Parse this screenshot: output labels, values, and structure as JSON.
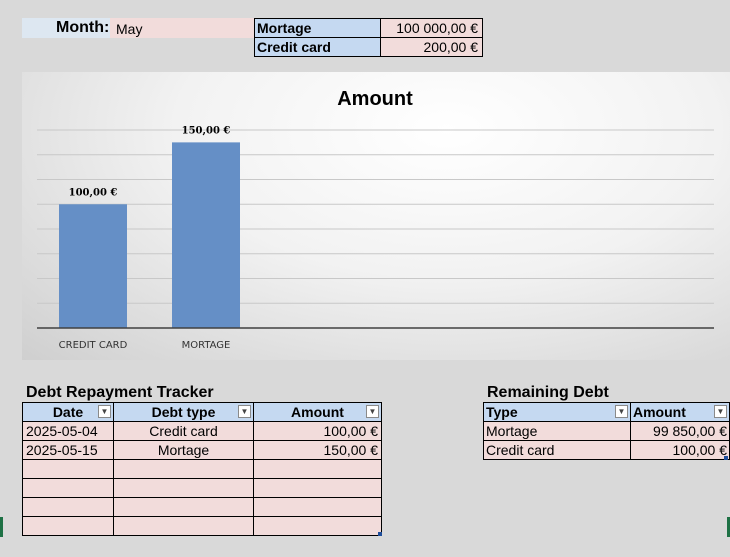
{
  "month": {
    "label": "Month:",
    "value": "May"
  },
  "balances": [
    {
      "type": "Mortage",
      "amount": "100 000,00 €"
    },
    {
      "type": "Credit card",
      "amount": "200,00 €"
    }
  ],
  "chart_data": {
    "type": "bar",
    "title": "Amount",
    "categories": [
      "CREDIT CARD",
      "MORTAGE"
    ],
    "values": [
      100,
      150
    ],
    "data_labels": [
      "100,00 €",
      "150,00 €"
    ],
    "ylim": [
      0,
      160
    ],
    "grid": true,
    "legend": "none",
    "bar_color": "#658fc6"
  },
  "tracker": {
    "title": "Debt Repayment Tracker",
    "headers": [
      "Date",
      "Debt type",
      "Amount"
    ],
    "rows": [
      [
        "2025-05-04",
        "Credit card",
        "100,00 €"
      ],
      [
        "2025-05-15",
        "Mortage",
        "150,00 €"
      ],
      [
        "",
        "",
        ""
      ],
      [
        "",
        "",
        ""
      ],
      [
        "",
        "",
        ""
      ],
      [
        "",
        "",
        ""
      ]
    ]
  },
  "remaining": {
    "title": "Remaining Debt",
    "headers": [
      "Type",
      "Amount"
    ],
    "rows": [
      [
        "Mortage",
        "99 850,00 €"
      ],
      [
        "Credit card",
        "100,00 €"
      ]
    ]
  },
  "icons": {
    "filter": "filter-dropdown-icon"
  }
}
